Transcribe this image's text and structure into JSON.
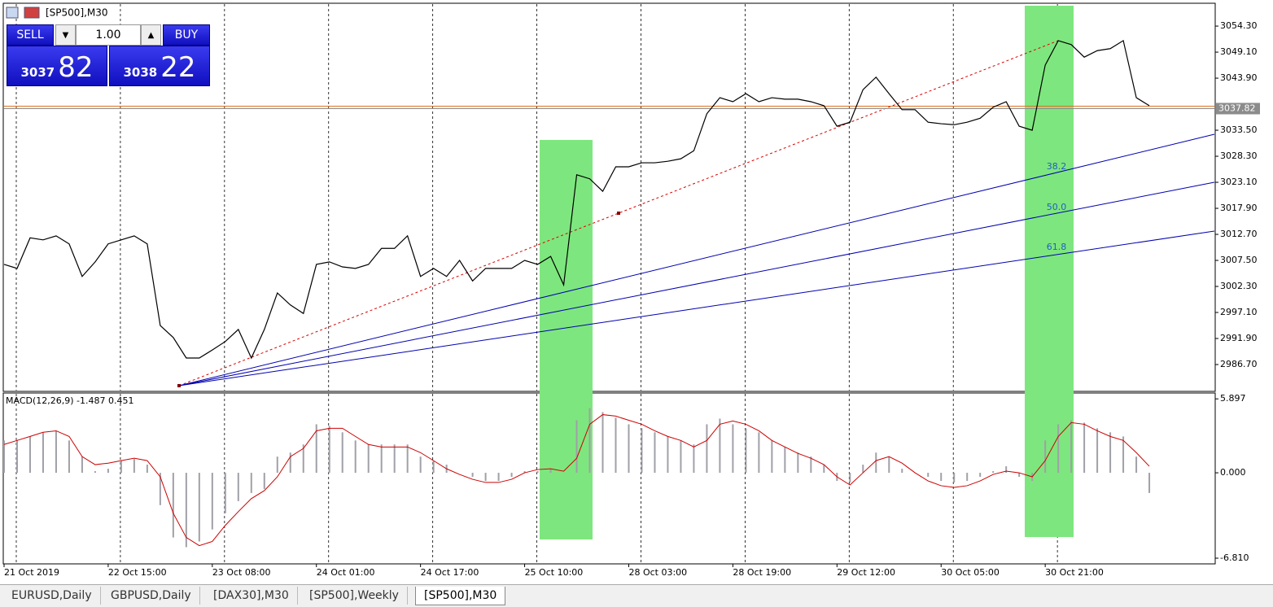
{
  "window": {
    "title": "[SP500],M30"
  },
  "trade_panel": {
    "sell": "SELL",
    "buy": "BUY",
    "lots": "1.00",
    "sell_price_head": "3037",
    "sell_price_tail": "82",
    "buy_price_head": "3038",
    "buy_price_tail": "22"
  },
  "chart_data": [
    {
      "type": "line",
      "title": "[SP500],M30",
      "color": "#000000",
      "bid": 3037.82,
      "bid_color": "#8c8c8c",
      "x": [
        0,
        4,
        8,
        12,
        16,
        20,
        24,
        28,
        32,
        36,
        40,
        44,
        48,
        52,
        56,
        60,
        64,
        68,
        72,
        76,
        80,
        84,
        88,
        92,
        96,
        100,
        104,
        108,
        112,
        116,
        120,
        124,
        128,
        132,
        136,
        140,
        144,
        148,
        152,
        156,
        160,
        164,
        168,
        172,
        176,
        180,
        184,
        188,
        192,
        196,
        200,
        204,
        208,
        212,
        216,
        220,
        224,
        228,
        232,
        236,
        240,
        244,
        248,
        252,
        256,
        260,
        264,
        268,
        272,
        276,
        280,
        284,
        288,
        292,
        296,
        300,
        304,
        308,
        312,
        316,
        320,
        324,
        328,
        332,
        336,
        340,
        344,
        348,
        352
      ],
      "values": [
        3006.7,
        3005.9,
        3012.0,
        3011.6,
        3012.4,
        3010.8,
        3004.3,
        3007.2,
        3010.8,
        3011.6,
        3012.4,
        3010.8,
        2994.5,
        2992.1,
        2988.0,
        2988.0,
        2989.6,
        2991.3,
        2993.7,
        2988.0,
        2993.7,
        3001.0,
        2998.6,
        2996.9,
        3006.7,
        3007.2,
        3006.2,
        3005.9,
        3006.7,
        3009.9,
        3009.9,
        3012.4,
        3004.3,
        3005.9,
        3004.3,
        3007.5,
        3003.4,
        3005.9,
        3005.9,
        3005.9,
        3007.5,
        3006.7,
        3008.3,
        3002.6,
        3024.6,
        3023.8,
        3021.3,
        3026.2,
        3026.2,
        3027.0,
        3027.0,
        3027.3,
        3027.8,
        3029.4,
        3036.8,
        3040.0,
        3039.2,
        3040.8,
        3039.2,
        3040.0,
        3039.7,
        3039.7,
        3039.2,
        3038.4,
        3034.3,
        3035.1,
        3041.6,
        3044.1,
        3040.8,
        3037.6,
        3037.6,
        3035.1,
        3034.8,
        3034.6,
        3035.1,
        3035.9,
        3038.1,
        3039.2,
        3034.3,
        3033.5,
        3046.5,
        3051.4,
        3050.6,
        3048.1,
        3049.4,
        3049.8,
        3051.4,
        3040.0,
        3038.4
      ],
      "xlim": [
        0,
        372
      ],
      "ylim": [
        2981.5,
        3058.7
      ],
      "yticks": [
        {
          "value": 3054.3,
          "label": "3054.30"
        },
        {
          "value": 3049.1,
          "label": "3049.10"
        },
        {
          "value": 3043.9,
          "label": "3043.90"
        },
        {
          "value": 3033.5,
          "label": "3033.50"
        },
        {
          "value": 3028.3,
          "label": "3028.30"
        },
        {
          "value": 3023.1,
          "label": "3023.10"
        },
        {
          "value": 3017.9,
          "label": "3017.90"
        },
        {
          "value": 3012.7,
          "label": "3012.70"
        },
        {
          "value": 3007.5,
          "label": "3007.50"
        },
        {
          "value": 3002.3,
          "label": "3002.30"
        },
        {
          "value": 2997.1,
          "label": "2997.10"
        },
        {
          "value": 2991.9,
          "label": "2991.90"
        },
        {
          "value": 2986.7,
          "label": "2986.70"
        }
      ],
      "fib_labels": [
        "38.2",
        "50.0",
        "61.8"
      ]
    },
    {
      "type": "bar",
      "title": "MACD(12,26,9) -1.487 0.451",
      "color": "#a0a0a8",
      "signal_color": "#cc0000",
      "x": [
        0,
        4,
        8,
        12,
        16,
        20,
        24,
        28,
        32,
        36,
        40,
        44,
        48,
        52,
        56,
        60,
        64,
        68,
        72,
        76,
        80,
        84,
        88,
        92,
        96,
        100,
        104,
        108,
        112,
        116,
        120,
        124,
        128,
        132,
        136,
        140,
        144,
        148,
        152,
        156,
        160,
        164,
        168,
        172,
        176,
        180,
        184,
        188,
        192,
        196,
        200,
        204,
        208,
        212,
        216,
        220,
        224,
        228,
        232,
        236,
        240,
        244,
        248,
        252,
        256,
        260,
        264,
        268,
        272,
        276,
        280,
        284,
        288,
        292,
        296,
        300,
        304,
        308,
        312,
        316,
        320,
        324,
        328,
        332,
        336,
        340,
        344,
        348,
        352
      ],
      "values": [
        2.58,
        2.58,
        2.9,
        3.23,
        3.35,
        2.58,
        1.29,
        0.13,
        0.32,
        0.97,
        1.1,
        0.65,
        -2.58,
        -5.16,
        -5.93,
        -5.48,
        -4.52,
        -3.23,
        -2.26,
        -1.61,
        -1.29,
        1.29,
        1.61,
        2.26,
        3.87,
        3.74,
        3.23,
        2.58,
        2.26,
        2.26,
        2.26,
        2.26,
        1.29,
        0.97,
        0.65,
        0,
        -0.32,
        -0.65,
        -0.65,
        -0.32,
        0.13,
        0.13,
        0.32,
        0,
        4.19,
        5.16,
        4.84,
        4.39,
        3.87,
        3.55,
        3.23,
        2.9,
        2.58,
        2.26,
        3.87,
        4.32,
        3.87,
        3.55,
        3.23,
        2.58,
        2.06,
        1.61,
        1.29,
        0.65,
        -0.65,
        -0.77,
        0.65,
        1.61,
        1.29,
        0.32,
        0,
        -0.32,
        -0.65,
        -0.77,
        -0.65,
        -0.32,
        0.13,
        0.52,
        -0.32,
        -0.65,
        2.58,
        3.87,
        4.19,
        4.0,
        3.55,
        3.23,
        2.9,
        1.29,
        -1.61
      ],
      "signal": [
        2.26,
        2.58,
        2.9,
        3.23,
        3.35,
        2.9,
        1.29,
        0.65,
        0.77,
        0.97,
        1.16,
        0.97,
        -0.32,
        -3.23,
        -5.16,
        -5.81,
        -5.48,
        -4.19,
        -3.1,
        -2.06,
        -1.42,
        -0.32,
        1.29,
        1.94,
        3.35,
        3.55,
        3.55,
        2.9,
        2.26,
        2.06,
        2.06,
        2.06,
        1.61,
        0.97,
        0.32,
        -0.13,
        -0.52,
        -0.77,
        -0.77,
        -0.52,
        0,
        0.26,
        0.32,
        0.13,
        1.16,
        3.87,
        4.64,
        4.52,
        4.19,
        3.87,
        3.35,
        2.9,
        2.58,
        2.06,
        2.58,
        3.87,
        4.13,
        3.87,
        3.35,
        2.58,
        2.06,
        1.55,
        1.16,
        0.65,
        -0.32,
        -0.97,
        0,
        0.97,
        1.29,
        0.77,
        0,
        -0.65,
        -1.03,
        -1.16,
        -1.03,
        -0.65,
        -0.13,
        0.13,
        0,
        -0.32,
        0.97,
        2.9,
        4.0,
        3.87,
        3.35,
        2.9,
        2.58,
        1.61,
        0.52
      ],
      "xlim": [
        0,
        372
      ],
      "ylim": [
        -7.2,
        6.3
      ],
      "yticks": [
        5.897,
        {
          "value": 0,
          "label": "0.000"
        },
        {
          "value": -6.81,
          "label": "-6.810"
        }
      ],
      "xticks": [
        {
          "value": 0,
          "label": "21 Oct 2019"
        },
        {
          "value": 32,
          "label": "22 Oct 15:00"
        },
        {
          "value": 64,
          "label": "23 Oct 08:00"
        },
        {
          "value": 96,
          "label": "24 Oct 01:00"
        },
        {
          "value": 128,
          "label": "24 Oct 17:00"
        },
        {
          "value": 160,
          "label": "25 Oct 10:00"
        },
        {
          "value": 192,
          "label": "28 Oct 03:00"
        },
        {
          "value": 224,
          "label": "28 Oct 19:00"
        },
        {
          "value": 256,
          "label": "29 Oct 12:00"
        },
        {
          "value": 288,
          "label": "30 Oct 05:00"
        },
        {
          "value": 320,
          "label": "30 Oct 21:00"
        }
      ],
      "grid": true
    }
  ],
  "tabs": [
    "EURUSD,Daily",
    "GBPUSD,Daily",
    "[DAX30],M30",
    "[SP500],Weekly",
    "[SP500],M30"
  ]
}
